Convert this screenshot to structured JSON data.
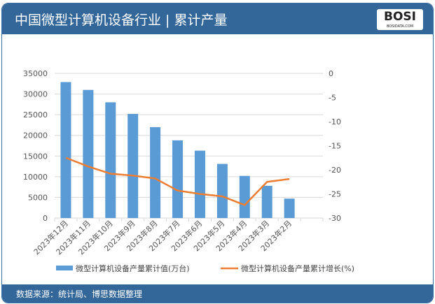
{
  "header": {
    "title": "中国微型计算机设备行业 | 累计产量",
    "logo": "BOSI",
    "logo_sub": "BOSIDATA.COM"
  },
  "footer": {
    "source": "数据来源：统计局、博思数据整理"
  },
  "colors": {
    "bar": "#5b9bd5",
    "line": "#ed7d31",
    "header": "#336699"
  },
  "chart_data": {
    "type": "bar+line",
    "categories": [
      "2023年12月",
      "2023年11月",
      "2023年10月",
      "2023年9月",
      "2023年8月",
      "2023年7月",
      "2023年6月",
      "2023年5月",
      "2023年4月",
      "2023年3月",
      "2023年2月"
    ],
    "series": [
      {
        "name": "微型计算机设备产量累计值(万台)",
        "type": "bar",
        "axis": "left",
        "values": [
          32900,
          31000,
          28000,
          25200,
          22000,
          18800,
          16300,
          13100,
          10200,
          7800,
          4700
        ]
      },
      {
        "name": "微型计算机设备产量累计增长(%)",
        "type": "line",
        "axis": "right",
        "values": [
          -17.5,
          -19.3,
          -20.8,
          -21.2,
          -21.8,
          -24.3,
          -25.0,
          -25.5,
          -27.3,
          -22.5,
          -21.9
        ]
      }
    ],
    "ylim": [
      0,
      35000
    ],
    "yticks": [
      0,
      5000,
      10000,
      15000,
      20000,
      25000,
      30000,
      35000
    ],
    "y2lim": [
      -30,
      0
    ],
    "y2ticks": [
      0,
      -5,
      -10,
      -15,
      -20,
      -25,
      -30
    ],
    "grid": true,
    "legend": "bottom"
  }
}
